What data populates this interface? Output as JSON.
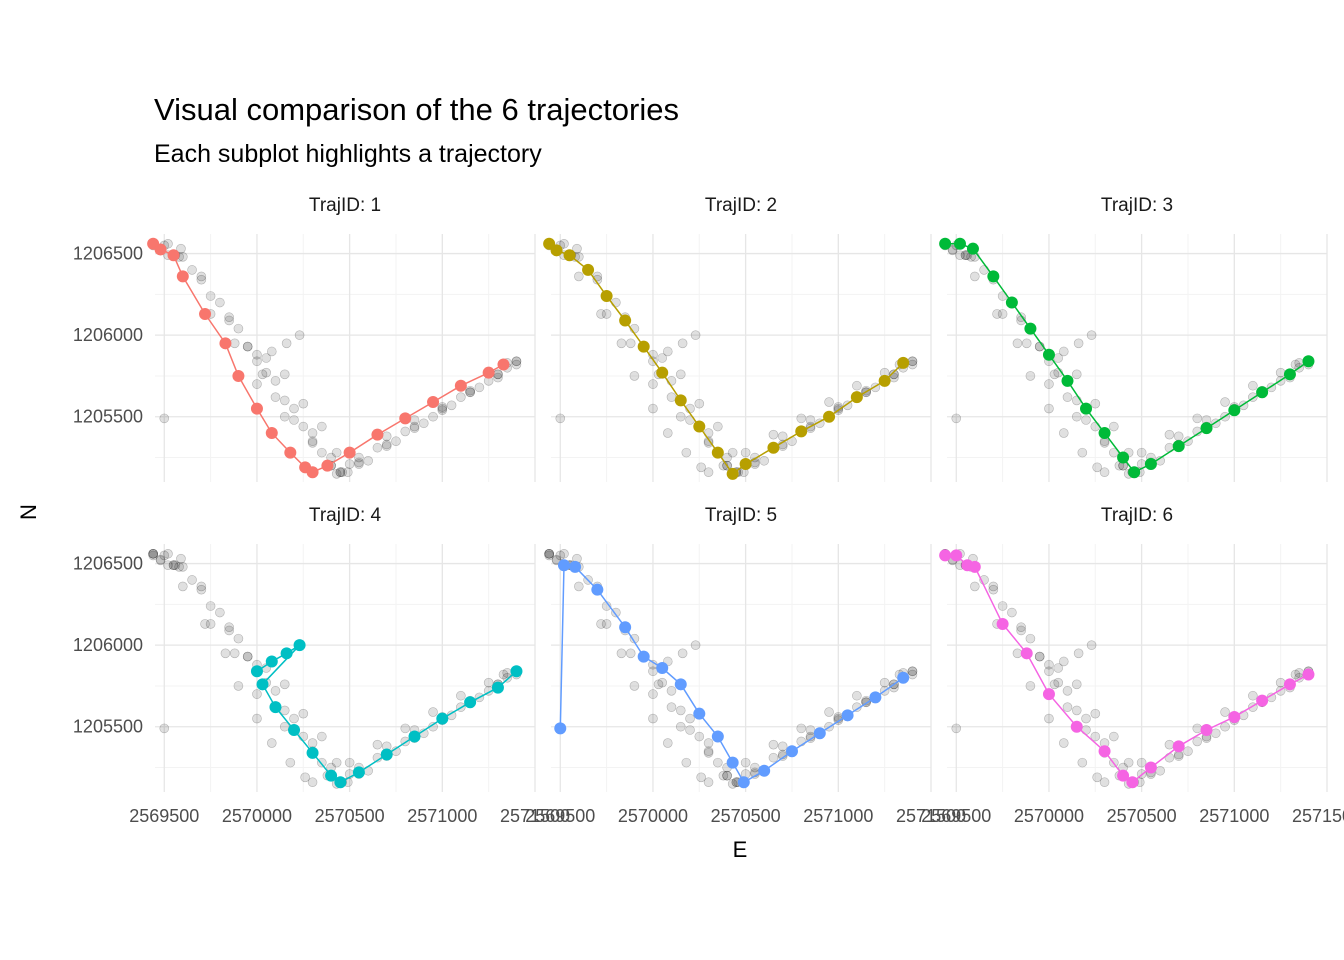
{
  "chart_data": {
    "type": "scatter",
    "title": "Visual comparison of the 6 trajectories",
    "subtitle": "Each subplot highlights a trajectory",
    "xlabel": "E",
    "ylabel": "N",
    "xlim": [
      2569450,
      2571500
    ],
    "ylim": [
      1205100,
      1206620
    ],
    "x_ticks": [
      2569500,
      2570000,
      2570500,
      2571000,
      2571500
    ],
    "x_tick_labels": [
      "2569500",
      "2570000",
      "2570500",
      "2571000",
      "2571500"
    ],
    "y_ticks": [
      1205500,
      1206000,
      1206500
    ],
    "y_tick_labels": [
      "1205500",
      "1206000",
      "1206500"
    ],
    "grid": true,
    "background_points": "all trajectories shown in grey (semi-transparent) in every panel",
    "series": [
      {
        "name": "TrajID: 1",
        "color": "#F8766D",
        "points": [
          [
            2569440,
            1206560
          ],
          [
            2569480,
            1206525
          ],
          [
            2569550,
            1206490
          ],
          [
            2569600,
            1206360
          ],
          [
            2569720,
            1206130
          ],
          [
            2569830,
            1205950
          ],
          [
            2569900,
            1205750
          ],
          [
            2570000,
            1205550
          ],
          [
            2570080,
            1205400
          ],
          [
            2570180,
            1205280
          ],
          [
            2570260,
            1205190
          ],
          [
            2570300,
            1205160
          ],
          [
            2570380,
            1205200
          ],
          [
            2570500,
            1205280
          ],
          [
            2570650,
            1205390
          ],
          [
            2570800,
            1205490
          ],
          [
            2570950,
            1205590
          ],
          [
            2571100,
            1205690
          ],
          [
            2571250,
            1205770
          ],
          [
            2571330,
            1205820
          ]
        ]
      },
      {
        "name": "TrajID: 2",
        "color": "#B79F00",
        "points": [
          [
            2569440,
            1206560
          ],
          [
            2569480,
            1206520
          ],
          [
            2569550,
            1206490
          ],
          [
            2569650,
            1206400
          ],
          [
            2569750,
            1206240
          ],
          [
            2569850,
            1206090
          ],
          [
            2569950,
            1205930
          ],
          [
            2570050,
            1205770
          ],
          [
            2570150,
            1205600
          ],
          [
            2570250,
            1205440
          ],
          [
            2570350,
            1205280
          ],
          [
            2570430,
            1205150
          ],
          [
            2570500,
            1205210
          ],
          [
            2570650,
            1205310
          ],
          [
            2570800,
            1205410
          ],
          [
            2570950,
            1205500
          ],
          [
            2571100,
            1205620
          ],
          [
            2571250,
            1205720
          ],
          [
            2571350,
            1205830
          ]
        ]
      },
      {
        "name": "TrajID: 3",
        "color": "#00BA38",
        "points": [
          [
            2569440,
            1206560
          ],
          [
            2569520,
            1206560
          ],
          [
            2569590,
            1206530
          ],
          [
            2569700,
            1206360
          ],
          [
            2569800,
            1206200
          ],
          [
            2569900,
            1206040
          ],
          [
            2570000,
            1205880
          ],
          [
            2570100,
            1205720
          ],
          [
            2570200,
            1205550
          ],
          [
            2570300,
            1205400
          ],
          [
            2570400,
            1205250
          ],
          [
            2570460,
            1205160
          ],
          [
            2570550,
            1205210
          ],
          [
            2570700,
            1205320
          ],
          [
            2570850,
            1205430
          ],
          [
            2571000,
            1205540
          ],
          [
            2571150,
            1205650
          ],
          [
            2571300,
            1205760
          ],
          [
            2571400,
            1205840
          ]
        ]
      },
      {
        "name": "TrajID: 4",
        "color": "#00BFC4",
        "points": [
          [
            2570000,
            1205840
          ],
          [
            2570080,
            1205900
          ],
          [
            2570160,
            1205950
          ],
          [
            2570230,
            1206000
          ],
          [
            2570030,
            1205760
          ],
          [
            2570100,
            1205620
          ],
          [
            2570200,
            1205480
          ],
          [
            2570300,
            1205340
          ],
          [
            2570400,
            1205200
          ],
          [
            2570450,
            1205160
          ],
          [
            2570550,
            1205220
          ],
          [
            2570700,
            1205330
          ],
          [
            2570850,
            1205440
          ],
          [
            2571000,
            1205550
          ],
          [
            2571150,
            1205650
          ],
          [
            2571300,
            1205740
          ],
          [
            2571400,
            1205840
          ]
        ]
      },
      {
        "name": "TrajID: 5",
        "color": "#619CFF",
        "points": [
          [
            2569500,
            1205490
          ],
          [
            2569520,
            1206490
          ],
          [
            2569580,
            1206480
          ],
          [
            2569700,
            1206340
          ],
          [
            2569850,
            1206110
          ],
          [
            2569950,
            1205930
          ],
          [
            2570050,
            1205860
          ],
          [
            2570150,
            1205760
          ],
          [
            2570250,
            1205580
          ],
          [
            2570350,
            1205440
          ],
          [
            2570430,
            1205280
          ],
          [
            2570490,
            1205160
          ],
          [
            2570600,
            1205230
          ],
          [
            2570750,
            1205350
          ],
          [
            2570900,
            1205460
          ],
          [
            2571050,
            1205570
          ],
          [
            2571200,
            1205680
          ],
          [
            2571350,
            1205800
          ]
        ]
      },
      {
        "name": "TrajID: 6",
        "color": "#F564E3",
        "points": [
          [
            2569440,
            1206550
          ],
          [
            2569500,
            1206550
          ],
          [
            2569560,
            1206490
          ],
          [
            2569600,
            1206480
          ],
          [
            2569750,
            1206130
          ],
          [
            2569880,
            1205950
          ],
          [
            2570000,
            1205700
          ],
          [
            2570150,
            1205500
          ],
          [
            2570300,
            1205350
          ],
          [
            2570400,
            1205200
          ],
          [
            2570450,
            1205160
          ],
          [
            2570550,
            1205250
          ],
          [
            2570700,
            1205380
          ],
          [
            2570850,
            1205480
          ],
          [
            2571000,
            1205560
          ],
          [
            2571150,
            1205660
          ],
          [
            2571300,
            1205760
          ],
          [
            2571400,
            1205820
          ]
        ]
      }
    ],
    "panels": [
      {
        "strip": "TrajID: 1"
      },
      {
        "strip": "TrajID: 2"
      },
      {
        "strip": "TrajID: 3"
      },
      {
        "strip": "TrajID: 4"
      },
      {
        "strip": "TrajID: 5"
      },
      {
        "strip": "TrajID: 6"
      }
    ]
  }
}
